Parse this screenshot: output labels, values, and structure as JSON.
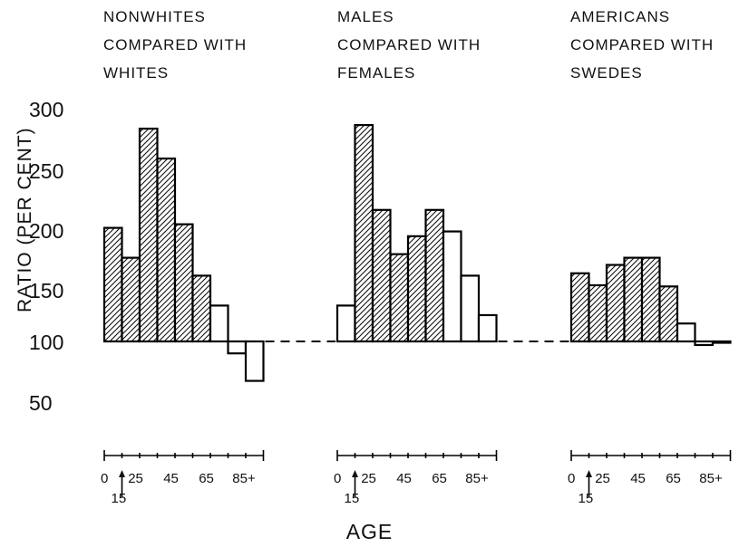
{
  "chart_data": {
    "type": "bar",
    "xlabel": "AGE",
    "ylabel": "RATIO (PER CENT)",
    "y_ticks": [
      "300",
      "250",
      "200",
      "150",
      "100",
      "50"
    ],
    "ylim": [
      50,
      300
    ],
    "baseline": 100,
    "age_ticks": [
      "0",
      "25",
      "45",
      "65",
      "85+"
    ],
    "age_marker": "15",
    "shading": "hatched where ratio exceeds 100 by a significant margin, open otherwise",
    "panels": [
      {
        "title": [
          "NONWHITES",
          "COMPARED WITH",
          "WHITES"
        ],
        "values": [
          195,
          170,
          278,
          253,
          198,
          155,
          130,
          90,
          67
        ],
        "hatched": [
          true,
          true,
          true,
          true,
          true,
          true,
          false,
          false,
          false
        ]
      },
      {
        "title": [
          "MALES",
          "COMPARED WITH",
          "FEMALES"
        ],
        "values": [
          130,
          281,
          210,
          173,
          188,
          210,
          192,
          155,
          122
        ],
        "hatched": [
          false,
          true,
          true,
          true,
          true,
          true,
          false,
          false,
          false
        ]
      },
      {
        "title": [
          "AMERICANS",
          "COMPARED WITH",
          "SWEDES"
        ],
        "values": [
          157,
          147,
          164,
          170,
          170,
          146,
          115,
          97,
          100
        ],
        "hatched": [
          true,
          true,
          true,
          true,
          true,
          true,
          false,
          false,
          false
        ]
      }
    ]
  }
}
